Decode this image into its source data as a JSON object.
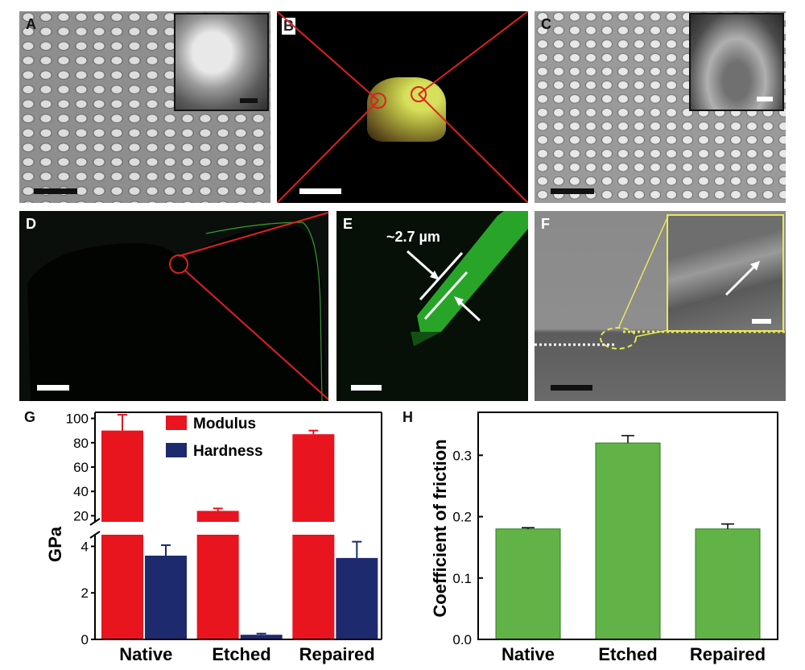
{
  "panels": {
    "A": "A",
    "B": "B",
    "C": "C",
    "D": "D",
    "E": "E",
    "F": "F",
    "G": "G",
    "H": "H"
  },
  "annotations": {
    "e_thickness": "~2.7 µm"
  },
  "colors": {
    "modulus": "#e8141e",
    "hardness": "#1e2a6e",
    "friction": "#62b347",
    "zoom_lines": "#e02020",
    "f_lines": "#e8e85a"
  },
  "chart_data": [
    {
      "type": "bar",
      "panel": "G",
      "categories": [
        "Native",
        "Etched",
        "Repaired"
      ],
      "ylabel": "GPa",
      "axis_break": true,
      "lower_ylim": [
        0,
        4.5
      ],
      "upper_ylim": [
        15,
        105
      ],
      "upper_ticks": [
        20,
        40,
        60,
        80,
        100
      ],
      "lower_ticks": [
        0,
        2,
        4
      ],
      "series": [
        {
          "name": "Modulus",
          "values": [
            90,
            24,
            87
          ],
          "errors": [
            13,
            2,
            3
          ]
        },
        {
          "name": "Hardness",
          "values": [
            3.6,
            0.2,
            3.5
          ],
          "errors": [
            0.45,
            0.05,
            0.7
          ]
        }
      ],
      "legend": "top-right"
    },
    {
      "type": "bar",
      "panel": "H",
      "categories": [
        "Native",
        "Etched",
        "Repaired"
      ],
      "ylabel": "Coefficient of friction",
      "ylim": [
        0,
        0.37
      ],
      "yticks": [
        "0.0",
        "0.1",
        "0.2",
        "0.3"
      ],
      "values": [
        0.18,
        0.32,
        0.18
      ],
      "errors": [
        0.002,
        0.012,
        0.008
      ]
    }
  ]
}
